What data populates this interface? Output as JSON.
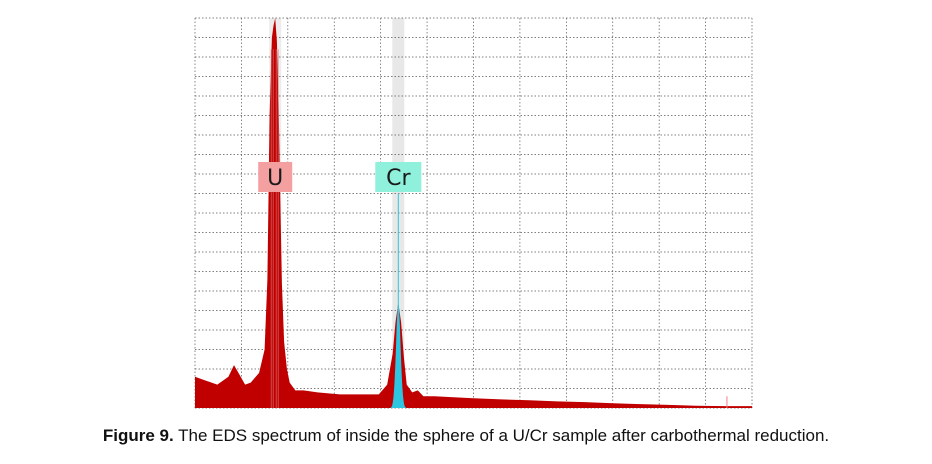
{
  "caption": {
    "label": "Figure 9.",
    "text": " The EDS spectrum of inside the sphere of a U/Cr sample after carbothermal reduction."
  },
  "colors": {
    "spectrum_fill": "#c00000",
    "u_label_bg": "#f4a0a0",
    "cr_label_bg": "#8ff0dc",
    "u_peak_highlight": "#ececec",
    "cr_peak_highlight": "#e8e8e8",
    "cr_peak_fill": "#2ec5e0",
    "grid": "#555555",
    "marker": "#f08080"
  },
  "chart_data": {
    "type": "area",
    "title": "",
    "xlabel": "",
    "ylabel": "",
    "grid": true,
    "xlim": [
      0,
      1
    ],
    "ylim": [
      0,
      1
    ],
    "peaks": [
      {
        "name": "U",
        "x": 0.144,
        "height": 1.0
      },
      {
        "name": "Cr",
        "x": 0.365,
        "height": 0.27
      }
    ],
    "series": [
      {
        "x": [
          0.0,
          0.02,
          0.04,
          0.06,
          0.07,
          0.08,
          0.09,
          0.1,
          0.115,
          0.125,
          0.13,
          0.134,
          0.138,
          0.141,
          0.144,
          0.147,
          0.15,
          0.153,
          0.156,
          0.16,
          0.165,
          0.17,
          0.18,
          0.195,
          0.22,
          0.26,
          0.3,
          0.33,
          0.345,
          0.355,
          0.36,
          0.365,
          0.37,
          0.375,
          0.38,
          0.39,
          0.4,
          0.41,
          0.43,
          0.46,
          0.5,
          0.55,
          0.6,
          0.65,
          0.7,
          0.75,
          0.8,
          0.85,
          0.9,
          0.95,
          1.0
        ],
        "values": [
          0.08,
          0.07,
          0.06,
          0.08,
          0.11,
          0.085,
          0.06,
          0.065,
          0.09,
          0.15,
          0.33,
          0.75,
          0.95,
          0.98,
          1.0,
          0.94,
          0.78,
          0.55,
          0.32,
          0.17,
          0.1,
          0.065,
          0.045,
          0.045,
          0.04,
          0.035,
          0.035,
          0.035,
          0.06,
          0.14,
          0.22,
          0.27,
          0.22,
          0.13,
          0.06,
          0.04,
          0.045,
          0.03,
          0.03,
          0.028,
          0.025,
          0.022,
          0.02,
          0.017,
          0.015,
          0.012,
          0.01,
          0.008,
          0.006,
          0.005,
          0.005
        ]
      }
    ]
  }
}
